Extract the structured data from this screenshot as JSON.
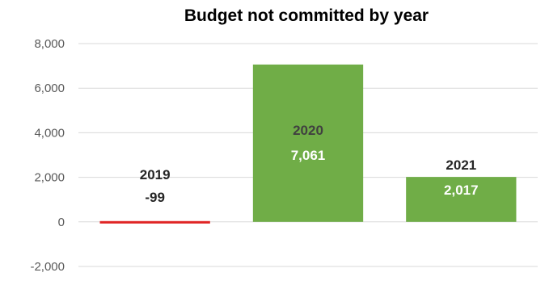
{
  "chart_data": {
    "type": "bar",
    "title": "Budget not committed by year",
    "xlabel": "",
    "ylabel": "",
    "categories": [
      "2019",
      "2020",
      "2021"
    ],
    "values": [
      -99,
      7061,
      2017
    ],
    "value_labels": [
      "-99",
      "7,061",
      "2,017"
    ],
    "yticks": [
      -2000,
      0,
      2000,
      4000,
      6000,
      8000
    ],
    "ytick_labels": [
      "-2,000",
      "0",
      "2,000",
      "4,000",
      "6,000",
      "8,000"
    ],
    "ylim": [
      -2000,
      8000
    ],
    "grid": true,
    "legend": "none",
    "colors": {
      "positive_bar": "#70ad47",
      "negative_bar": "#e02424",
      "label_inside": "#ffffff",
      "label_outside": "#262626",
      "label_in_bar": "#404040"
    }
  }
}
